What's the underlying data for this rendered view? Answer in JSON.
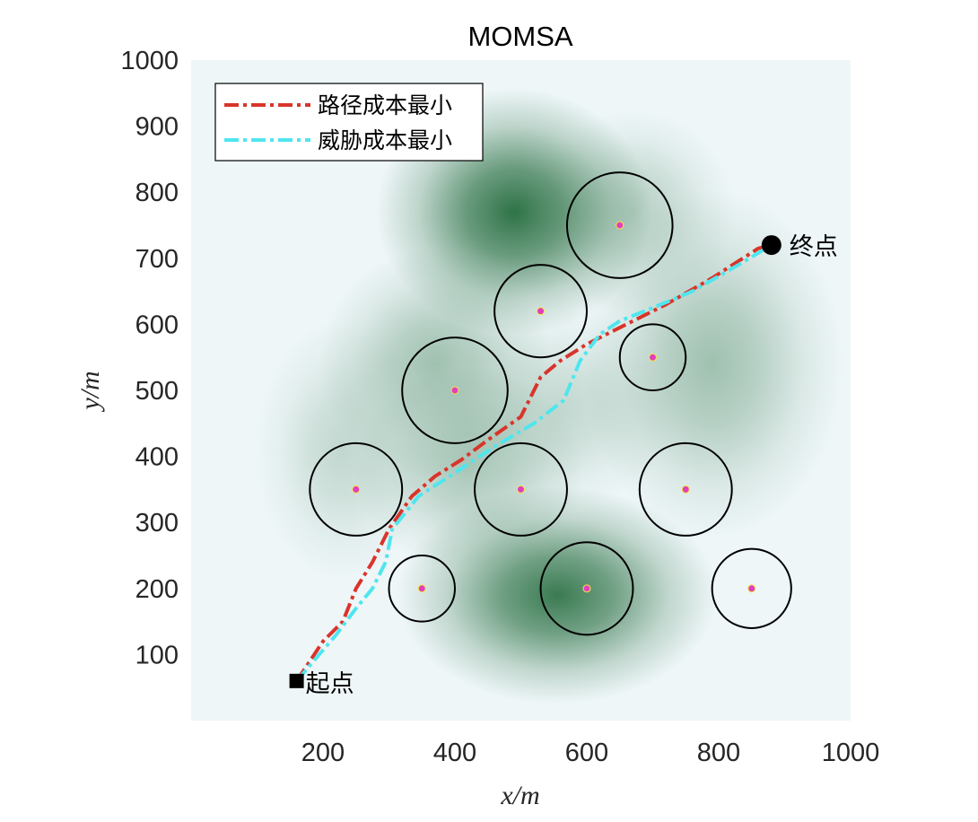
{
  "chart_data": {
    "type": "line",
    "title": "MOMSA",
    "xlabel": "x/m",
    "ylabel": "y/m",
    "xlim": [
      0,
      1000
    ],
    "ylim": [
      0,
      1000
    ],
    "xticks": [
      200,
      400,
      600,
      800,
      1000
    ],
    "yticks": [
      100,
      200,
      300,
      400,
      500,
      600,
      700,
      800,
      900,
      1000
    ],
    "colors": {
      "background": "#eef6f8",
      "threat_dark": "#0d5c28",
      "path_cost": "#d9342b",
      "threat_cost": "#4fe6ee",
      "circle": "#000000",
      "center_fill": "#e040c0",
      "center_edge": "#f5e642"
    },
    "threat_circles": [
      {
        "x": 650,
        "y": 750,
        "r": 80
      },
      {
        "x": 530,
        "y": 620,
        "r": 70
      },
      {
        "x": 700,
        "y": 550,
        "r": 50
      },
      {
        "x": 400,
        "y": 500,
        "r": 80
      },
      {
        "x": 250,
        "y": 350,
        "r": 70
      },
      {
        "x": 500,
        "y": 350,
        "r": 70
      },
      {
        "x": 750,
        "y": 350,
        "r": 70
      },
      {
        "x": 350,
        "y": 200,
        "r": 50
      },
      {
        "x": 600,
        "y": 200,
        "r": 70
      },
      {
        "x": 850,
        "y": 200,
        "r": 60
      }
    ],
    "threat_blobs": [
      {
        "x": 490,
        "y": 770,
        "sx": 95,
        "sy": 85,
        "a": 0.85
      },
      {
        "x": 670,
        "y": 770,
        "sx": 70,
        "sy": 70,
        "a": 0.25
      },
      {
        "x": 555,
        "y": 190,
        "sx": 110,
        "sy": 75,
        "a": 0.8
      },
      {
        "x": 370,
        "y": 540,
        "sx": 80,
        "sy": 80,
        "a": 0.35
      },
      {
        "x": 420,
        "y": 380,
        "sx": 80,
        "sy": 70,
        "a": 0.3
      },
      {
        "x": 790,
        "y": 540,
        "sx": 90,
        "sy": 120,
        "a": 0.35
      },
      {
        "x": 230,
        "y": 410,
        "sx": 60,
        "sy": 90,
        "a": 0.2
      },
      {
        "x": 560,
        "y": 470,
        "sx": 80,
        "sy": 70,
        "a": 0.2
      }
    ],
    "series": [
      {
        "name": "路径成本最小",
        "x": [
          160,
          180,
          200,
          230,
          250,
          275,
          300,
          335,
          370,
          410,
          450,
          500,
          530,
          560,
          600,
          660,
          720,
          790,
          860,
          880
        ],
        "y": [
          60,
          90,
          120,
          150,
          200,
          240,
          290,
          340,
          370,
          395,
          425,
          460,
          520,
          545,
          570,
          600,
          630,
          670,
          715,
          720
        ]
      },
      {
        "name": "威胁成本最小",
        "x": [
          160,
          190,
          220,
          250,
          275,
          295,
          305,
          345,
          400,
          460,
          520,
          565,
          590,
          620,
          650,
          700,
          760,
          830,
          880
        ],
        "y": [
          60,
          95,
          130,
          170,
          200,
          240,
          290,
          340,
          375,
          415,
          450,
          485,
          545,
          585,
          605,
          625,
          650,
          690,
          720
        ]
      }
    ],
    "start": {
      "x": 160,
      "y": 60,
      "label": "起点"
    },
    "goal": {
      "x": 880,
      "y": 720,
      "label": "终点"
    },
    "legend": {
      "position": "top-left",
      "entries": [
        "路径成本最小",
        "威胁成本最小"
      ]
    }
  }
}
